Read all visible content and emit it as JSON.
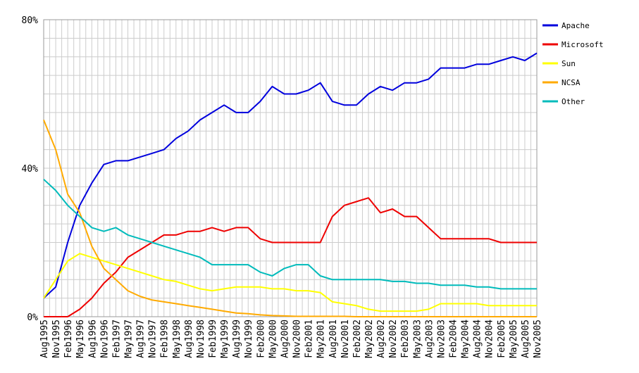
{
  "chart_data": {
    "type": "line",
    "title": "",
    "xlabel": "",
    "ylabel": "",
    "ylim": [
      0,
      80
    ],
    "y_ticks": [
      "0%",
      "40%",
      "80%"
    ],
    "grid": true,
    "legend_position": "right",
    "x_tick_labels": [
      "Aug1995",
      "Nov1995",
      "Feb1996",
      "May1996",
      "Aug1996",
      "Nov1996",
      "Feb1997",
      "May1997",
      "Aug1997",
      "Nov1997",
      "Feb1998",
      "May1998",
      "Aug1998",
      "Nov1998",
      "Feb1999",
      "May1999",
      "Aug1999",
      "Nov1999",
      "Feb2000",
      "May2000",
      "Aug2000",
      "Nov2000",
      "Feb2001",
      "May2001",
      "Aug2001",
      "Nov2001",
      "Feb2002",
      "May2002",
      "Aug2002",
      "Nov2002",
      "Feb2003",
      "May2003",
      "Aug2003",
      "Nov2003",
      "Feb2004",
      "May2004",
      "Aug2004",
      "Nov2004",
      "Feb2005",
      "May2005",
      "Aug2005",
      "Nov2005"
    ],
    "series": [
      {
        "name": "Apache",
        "color": "#0000dd",
        "values": [
          5,
          8,
          20,
          30,
          36,
          41,
          42,
          42,
          43,
          44,
          45,
          48,
          50,
          53,
          55,
          57,
          55,
          55,
          58,
          62,
          60,
          60,
          61,
          63,
          58,
          57,
          57,
          60,
          62,
          61,
          63,
          63,
          64,
          67,
          67,
          67,
          68,
          68,
          69,
          70,
          69,
          71
        ]
      },
      {
        "name": "Microsoft",
        "color": "#ee0000",
        "values": [
          0,
          0,
          0,
          2,
          5,
          9,
          12,
          16,
          18,
          20,
          22,
          22,
          23,
          23,
          24,
          23,
          24,
          24,
          21,
          20,
          20,
          20,
          20,
          20,
          27,
          30,
          31,
          32,
          28,
          29,
          27,
          27,
          24,
          21,
          21,
          21,
          21,
          21,
          20,
          20,
          20,
          20
        ]
      },
      {
        "name": "Sun",
        "color": "#ffff00",
        "values": [
          5,
          10,
          15,
          17,
          16,
          15,
          14,
          13,
          12,
          11,
          10,
          9.5,
          8.5,
          7.5,
          7,
          7.5,
          8,
          8,
          8,
          7.5,
          7.5,
          7,
          7,
          6.5,
          4,
          3.5,
          3,
          2,
          1.5,
          1.5,
          1.5,
          1.5,
          2,
          3.5,
          3.5,
          3.5,
          3.5,
          3,
          3,
          3,
          3,
          3
        ]
      },
      {
        "name": "NCSA",
        "color": "#ffaa00",
        "values": [
          53,
          45,
          33,
          28,
          19,
          13,
          10,
          7,
          5.5,
          4.5,
          4,
          3.5,
          3,
          2.5,
          2,
          1.5,
          1,
          0.8,
          0.5,
          0.3,
          0.2,
          0.1,
          0.1,
          0.1,
          0.1,
          0.1,
          0,
          0,
          0,
          0,
          0,
          0,
          0,
          0,
          0,
          0,
          0,
          0,
          0,
          0,
          0,
          0
        ]
      },
      {
        "name": "Other",
        "color": "#00bbbb",
        "values": [
          37,
          34,
          30,
          27,
          24,
          23,
          24,
          22,
          21,
          20,
          19,
          18,
          17,
          16,
          14,
          14,
          14,
          14,
          12,
          11,
          13,
          14,
          14,
          11,
          10,
          10,
          10,
          10,
          10,
          9.5,
          9.5,
          9,
          9,
          8.5,
          8.5,
          8.5,
          8,
          8,
          7.5,
          7.5,
          7.5,
          7.5
        ]
      }
    ]
  }
}
